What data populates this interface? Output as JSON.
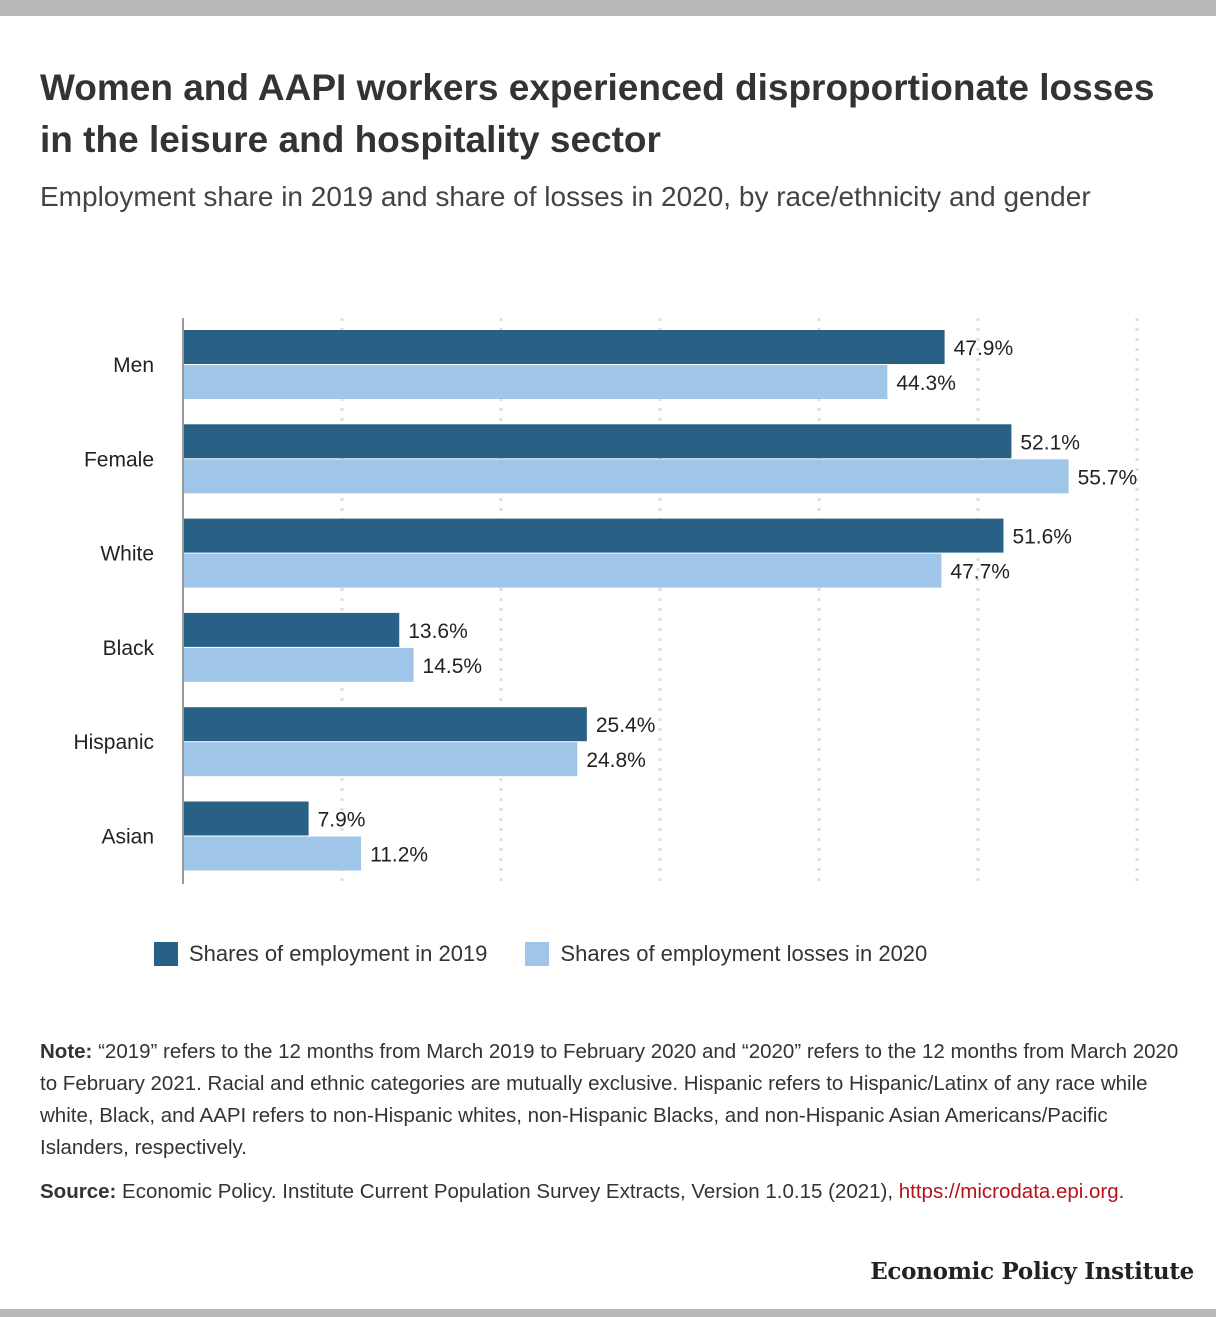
{
  "header": {
    "title": "Women and AAPI workers experienced disproportionate losses in the leisure and hospitality sector",
    "subtitle": "Employment share in 2019 and share of losses in 2020, by race/ethnicity and gender"
  },
  "chart_data": {
    "type": "bar",
    "orientation": "horizontal",
    "categories": [
      "Men",
      "Female",
      "White",
      "Black",
      "Hispanic",
      "Asian"
    ],
    "series": [
      {
        "name": "Shares of employment in 2019",
        "color": "#286086",
        "values": [
          47.9,
          52.1,
          51.6,
          13.6,
          25.4,
          7.9
        ],
        "labels": [
          "47.9%",
          "52.1%",
          "51.6%",
          "13.6%",
          "25.4%",
          "7.9%"
        ]
      },
      {
        "name": "Shares of employment losses in 2020",
        "color": "#9fc6e8",
        "values": [
          44.3,
          55.7,
          47.7,
          14.5,
          24.8,
          11.2
        ],
        "labels": [
          "44.3%",
          "55.7%",
          "47.7%",
          "14.5%",
          "24.8%",
          "11.2%"
        ]
      }
    ],
    "xlim": [
      0,
      60
    ],
    "grid": true,
    "legend_position": "bottom-left"
  },
  "footer": {
    "note_label": "Note:",
    "note_text": " “2019” refers to the 12 months from March 2019 to February 2020 and “2020” refers to the 12 months from March 2020 to February 2021. Racial and ethnic categories are mutually exclusive. Hispanic refers to Hispanic/Latinx of any race while white, Black, and AAPI refers to non-Hispanic whites, non-Hispanic Blacks, and non-Hispanic Asian Americans/Pacific Islanders, respectively.",
    "source_label": "Source:",
    "source_text": " Economic Policy. Institute Current Population Survey Extracts, Version 1.0.15 (2021), ",
    "source_link": "https://microdata.epi.org",
    "source_end": ".",
    "brand": "Economic Policy Institute"
  }
}
